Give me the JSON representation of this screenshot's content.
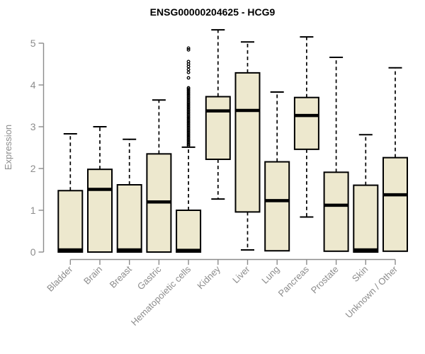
{
  "chart_data": {
    "type": "boxplot",
    "title": "ENSG00000204625 - HCG9",
    "xlabel": "",
    "ylabel": "Expression",
    "ylim": [
      0,
      5.35
    ],
    "yticks": [
      "0",
      "1",
      "2",
      "3",
      "4",
      "5"
    ],
    "grid": false,
    "legend": "none",
    "categories": [
      "Bladder",
      "Brain",
      "Breast",
      "Gastric",
      "Hematopoietic cells",
      "Kidney",
      "Liver",
      "Lung",
      "Pancreas",
      "Prostate",
      "Skin",
      "Unknown / Other"
    ],
    "boxes": [
      {
        "label": "Bladder",
        "whisker_low": 0,
        "q1": 0,
        "median": 0.05,
        "q3": 1.47,
        "whisker_high": 2.83,
        "outliers": []
      },
      {
        "label": "Brain",
        "whisker_low": 0,
        "q1": 0,
        "median": 1.5,
        "q3": 1.98,
        "whisker_high": 3.0,
        "outliers": []
      },
      {
        "label": "Breast",
        "whisker_low": 0,
        "q1": 0,
        "median": 0.05,
        "q3": 1.61,
        "whisker_high": 2.7,
        "outliers": []
      },
      {
        "label": "Gastric",
        "whisker_low": 0,
        "q1": 0,
        "median": 1.2,
        "q3": 2.35,
        "whisker_high": 3.64,
        "outliers": []
      },
      {
        "label": "Hematopoietic cells",
        "whisker_low": 0,
        "q1": 0,
        "median": 0.04,
        "q3": 1.0,
        "whisker_high": 2.51,
        "outliers": [
          4.88,
          4.84,
          4.56,
          4.5,
          4.44,
          4.37,
          4.3,
          4.17,
          3.93,
          3.9,
          3.86,
          3.82,
          3.78,
          3.74,
          3.7,
          3.66,
          3.62,
          3.58,
          3.54,
          3.5,
          3.46,
          3.42,
          3.38,
          3.34,
          3.3,
          3.26,
          3.22,
          3.18,
          3.14,
          3.1,
          3.06,
          3.02,
          2.98,
          2.94,
          2.9,
          2.86,
          2.82,
          2.78,
          2.74,
          2.7,
          2.66,
          2.62,
          2.58,
          2.55
        ]
      },
      {
        "label": "Kidney",
        "whisker_low": 1.27,
        "q1": 2.22,
        "median": 3.38,
        "q3": 3.72,
        "whisker_high": 5.32,
        "outliers": []
      },
      {
        "label": "Liver",
        "whisker_low": 0.05,
        "q1": 0.96,
        "median": 3.39,
        "q3": 4.29,
        "whisker_high": 5.03,
        "outliers": []
      },
      {
        "label": "Lung",
        "whisker_low": 0.02,
        "q1": 0.03,
        "median": 1.23,
        "q3": 2.16,
        "whisker_high": 3.83,
        "outliers": []
      },
      {
        "label": "Pancreas",
        "whisker_low": 0.84,
        "q1": 2.46,
        "median": 3.27,
        "q3": 3.7,
        "whisker_high": 5.15,
        "outliers": []
      },
      {
        "label": "Prostate",
        "whisker_low": 0.02,
        "q1": 0.02,
        "median": 1.12,
        "q3": 1.91,
        "whisker_high": 4.66,
        "outliers": []
      },
      {
        "label": "Skin",
        "whisker_low": 0,
        "q1": 0,
        "median": 0.05,
        "q3": 1.6,
        "whisker_high": 2.81,
        "outliers": []
      },
      {
        "label": "Unknown / Other",
        "whisker_low": 0.02,
        "q1": 0.02,
        "median": 1.37,
        "q3": 2.26,
        "whisker_high": 4.41,
        "outliers": []
      }
    ],
    "colors": {
      "box_fill": "#EDE8CE",
      "box_border": "#000000",
      "median": "#000000",
      "whisker": "#000000",
      "axis": "#8C8C8C",
      "tick_label": "#8C8C8C",
      "title": "#000000",
      "background": "#FFFFFF"
    }
  }
}
